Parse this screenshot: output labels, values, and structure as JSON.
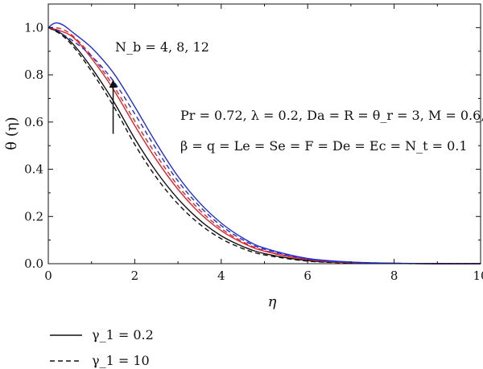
{
  "chart_data": {
    "type": "line",
    "title": "",
    "xlabel": "η",
    "ylabel": "θ (η)",
    "xlim": [
      0,
      10
    ],
    "ylim": [
      0,
      1.1
    ],
    "xticks": [
      "0",
      "2",
      "4",
      "6",
      "8",
      "10"
    ],
    "yticks": [
      "0.0",
      "0.2",
      "0.4",
      "0.6",
      "0.8",
      "1.0"
    ],
    "grid": false,
    "colors": {
      "nb4": "#111111",
      "nb8": "#e0242a",
      "nb12": "#1f2fd0"
    },
    "annotations": {
      "arrow_label": "N_b = 4, 8, 12",
      "arrow_from": [
        1.5,
        0.55
      ],
      "arrow_to": [
        1.5,
        0.78
      ],
      "params_line1": "Pr = 0.72, λ = 0.2, Da = R = θ_r = 3, M = 0.6,",
      "params_line2": "β = q = Le = Se = F = De = Ec = N_t = 0.1"
    },
    "legend": {
      "position": "bottom-left, below plot",
      "entries": [
        {
          "style": "solid",
          "label": "γ_1 = 0.2"
        },
        {
          "style": "dashed",
          "label": "γ_1 = 10"
        }
      ]
    },
    "series": [
      {
        "style": "solid",
        "color": "#111111",
        "x": [
          0,
          0.3,
          0.6,
          1,
          1.5,
          2,
          2.5,
          3,
          3.5,
          4,
          4.5,
          5,
          6,
          7,
          8,
          9,
          10
        ],
        "y": [
          1.0,
          0.975,
          0.925,
          0.83,
          0.69,
          0.53,
          0.39,
          0.275,
          0.185,
          0.118,
          0.073,
          0.043,
          0.013,
          0.004,
          0.001,
          0.0,
          0.0
        ]
      },
      {
        "style": "dashed",
        "color": "#111111",
        "x": [
          0,
          0.3,
          0.6,
          1,
          1.5,
          2,
          2.5,
          3,
          3.5,
          4,
          4.5,
          5,
          6,
          7,
          8,
          9,
          10
        ],
        "y": [
          1.0,
          0.97,
          0.915,
          0.815,
          0.67,
          0.505,
          0.365,
          0.253,
          0.168,
          0.106,
          0.064,
          0.037,
          0.011,
          0.003,
          0.001,
          0.0,
          0.0
        ]
      },
      {
        "style": "solid",
        "color": "#e0242a",
        "x": [
          0,
          0.3,
          0.6,
          1,
          1.5,
          2,
          2.5,
          3,
          3.5,
          4,
          4.5,
          5,
          6,
          7,
          8,
          9,
          10
        ],
        "y": [
          1.0,
          0.985,
          0.955,
          0.87,
          0.74,
          0.585,
          0.44,
          0.315,
          0.215,
          0.14,
          0.088,
          0.053,
          0.017,
          0.005,
          0.0015,
          0.0,
          0.0
        ]
      },
      {
        "style": "dashed",
        "color": "#e0242a",
        "x": [
          0,
          0.3,
          0.6,
          1,
          1.5,
          2,
          2.5,
          3,
          3.5,
          4,
          4.5,
          5,
          6,
          7,
          8,
          9,
          10
        ],
        "y": [
          1.0,
          0.995,
          0.96,
          0.88,
          0.755,
          0.605,
          0.46,
          0.33,
          0.228,
          0.149,
          0.093,
          0.056,
          0.018,
          0.005,
          0.0015,
          0.0,
          0.0
        ]
      },
      {
        "style": "solid",
        "color": "#1f2fd0",
        "x": [
          0,
          0.1,
          0.2,
          0.35,
          0.6,
          1,
          1.5,
          2,
          2.5,
          3,
          3.5,
          4,
          4.5,
          5,
          6,
          7,
          8,
          9,
          10
        ],
        "y": [
          1.0,
          1.015,
          1.02,
          1.01,
          0.975,
          0.915,
          0.81,
          0.665,
          0.51,
          0.37,
          0.258,
          0.172,
          0.109,
          0.066,
          0.022,
          0.007,
          0.002,
          0.0,
          0.0
        ]
      },
      {
        "style": "dashed",
        "color": "#1f2fd0",
        "x": [
          0,
          0.1,
          0.2,
          0.35,
          0.6,
          1,
          1.5,
          2,
          2.5,
          3,
          3.5,
          4,
          4.5,
          5,
          6,
          7,
          8,
          9,
          10
        ],
        "y": [
          1.0,
          1.0,
          0.99,
          0.97,
          0.94,
          0.88,
          0.775,
          0.635,
          0.485,
          0.35,
          0.243,
          0.161,
          0.101,
          0.061,
          0.02,
          0.006,
          0.002,
          0.0,
          0.0
        ]
      }
    ]
  }
}
